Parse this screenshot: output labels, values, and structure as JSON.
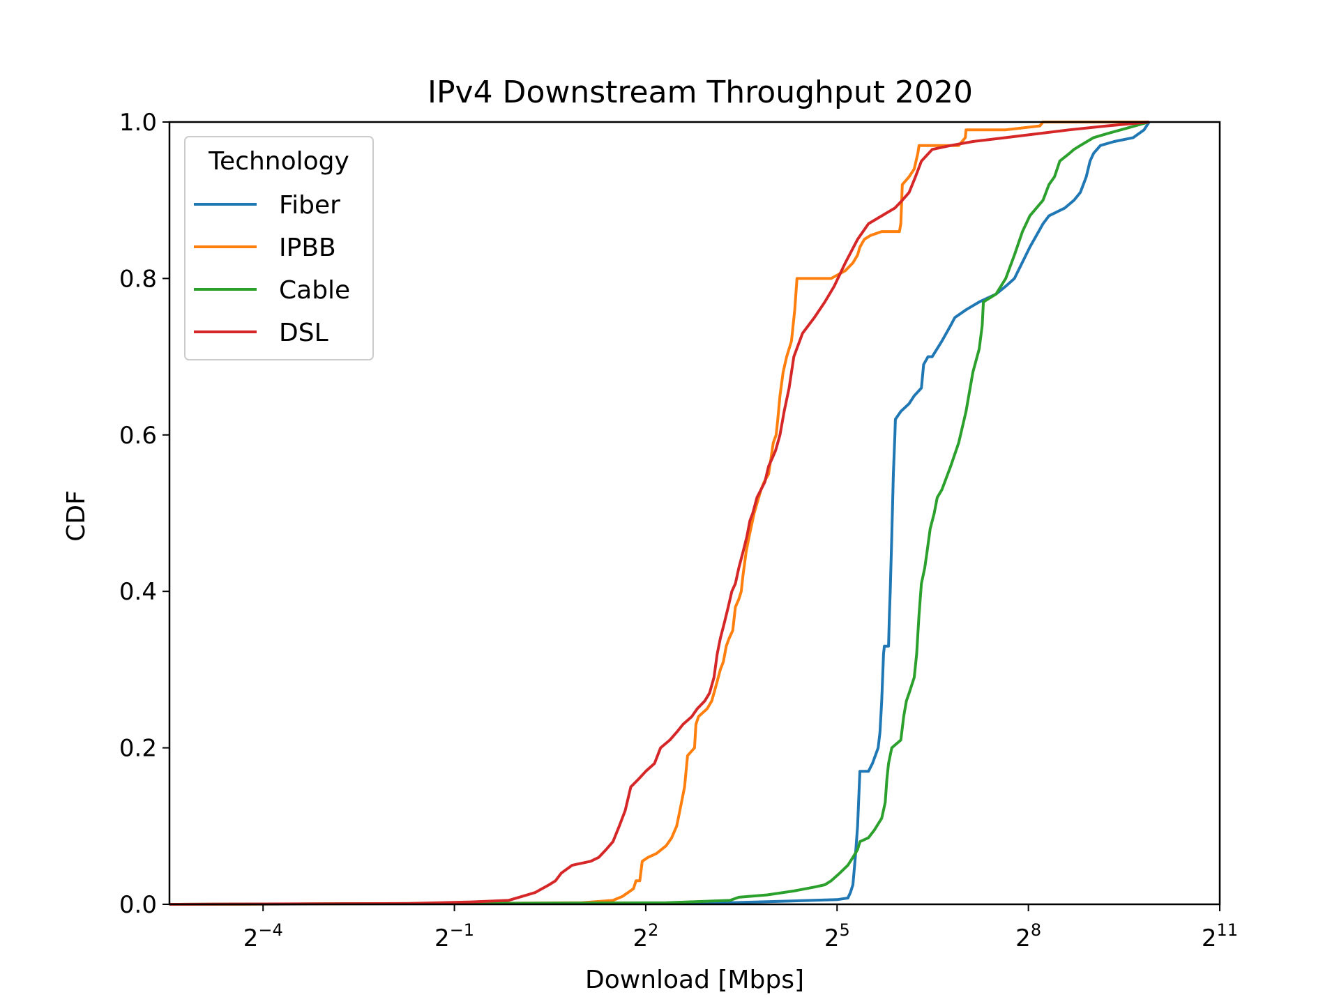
{
  "chart_data": {
    "type": "line",
    "title": "IPv4 Downstream Throughput 2020",
    "xlabel": "Download [Mbps]",
    "ylabel": "CDF",
    "x_scale": "log2",
    "xlim": [
      0.0226,
      2048
    ],
    "ylim": [
      0,
      1
    ],
    "x_ticks": [
      {
        "base": "2",
        "exp": "−4",
        "value": 0.0625
      },
      {
        "base": "2",
        "exp": "−1",
        "value": 0.5
      },
      {
        "base": "2",
        "exp": "2",
        "value": 4
      },
      {
        "base": "2",
        "exp": "5",
        "value": 32
      },
      {
        "base": "2",
        "exp": "8",
        "value": 256
      },
      {
        "base": "2",
        "exp": "11",
        "value": 2048
      }
    ],
    "y_ticks": [
      {
        "label": "0.0",
        "value": 0.0
      },
      {
        "label": "0.2",
        "value": 0.2
      },
      {
        "label": "0.4",
        "value": 0.4
      },
      {
        "label": "0.6",
        "value": 0.6
      },
      {
        "label": "0.8",
        "value": 0.8
      },
      {
        "label": "1.0",
        "value": 1.0
      }
    ],
    "grid": false,
    "legend": {
      "title": "Technology",
      "position": "top-left"
    },
    "series": [
      {
        "name": "Fiber",
        "color": "#1f77b4",
        "points": [
          [
            0.0226,
            0
          ],
          [
            1,
            0.001
          ],
          [
            10,
            0.002
          ],
          [
            32,
            0.006
          ],
          [
            36,
            0.008
          ],
          [
            37,
            0.015
          ],
          [
            38,
            0.025
          ],
          [
            39,
            0.06
          ],
          [
            40,
            0.1
          ],
          [
            41,
            0.17
          ],
          [
            45,
            0.17
          ],
          [
            47,
            0.18
          ],
          [
            50,
            0.2
          ],
          [
            51,
            0.22
          ],
          [
            52,
            0.26
          ],
          [
            53,
            0.32
          ],
          [
            53.5,
            0.33
          ],
          [
            56,
            0.33
          ],
          [
            56.5,
            0.37
          ],
          [
            57,
            0.4
          ],
          [
            58,
            0.47
          ],
          [
            59,
            0.55
          ],
          [
            60,
            0.6
          ],
          [
            60.3,
            0.62
          ],
          [
            64,
            0.63
          ],
          [
            70,
            0.64
          ],
          [
            74,
            0.65
          ],
          [
            80,
            0.66
          ],
          [
            82,
            0.69
          ],
          [
            86,
            0.7
          ],
          [
            90,
            0.7
          ],
          [
            100,
            0.72
          ],
          [
            110,
            0.74
          ],
          [
            115,
            0.75
          ],
          [
            130,
            0.76
          ],
          [
            150,
            0.77
          ],
          [
            180,
            0.78
          ],
          [
            200,
            0.79
          ],
          [
            220,
            0.8
          ],
          [
            260,
            0.84
          ],
          [
            300,
            0.87
          ],
          [
            320,
            0.88
          ],
          [
            380,
            0.89
          ],
          [
            420,
            0.9
          ],
          [
            450,
            0.91
          ],
          [
            480,
            0.93
          ],
          [
            500,
            0.95
          ],
          [
            520,
            0.96
          ],
          [
            560,
            0.97
          ],
          [
            650,
            0.975
          ],
          [
            800,
            0.98
          ],
          [
            900,
            0.99
          ],
          [
            950,
            1.0
          ]
        ]
      },
      {
        "name": "IPBB",
        "color": "#ff7f0e",
        "points": [
          [
            0.0226,
            0
          ],
          [
            0.5,
            0.001
          ],
          [
            2,
            0.002
          ],
          [
            2.8,
            0.005
          ],
          [
            3.1,
            0.01
          ],
          [
            3.3,
            0.015
          ],
          [
            3.5,
            0.02
          ],
          [
            3.6,
            0.03
          ],
          [
            3.75,
            0.03
          ],
          [
            3.85,
            0.055
          ],
          [
            4.1,
            0.06
          ],
          [
            4.5,
            0.065
          ],
          [
            5,
            0.075
          ],
          [
            5.3,
            0.085
          ],
          [
            5.6,
            0.1
          ],
          [
            5.8,
            0.12
          ],
          [
            6.1,
            0.15
          ],
          [
            6.3,
            0.19
          ],
          [
            6.8,
            0.2
          ],
          [
            6.9,
            0.23
          ],
          [
            7.1,
            0.24
          ],
          [
            7.8,
            0.25
          ],
          [
            8.2,
            0.26
          ],
          [
            8.6,
            0.28
          ],
          [
            9,
            0.3
          ],
          [
            9.3,
            0.31
          ],
          [
            9.6,
            0.33
          ],
          [
            9.9,
            0.34
          ],
          [
            10.3,
            0.35
          ],
          [
            10.6,
            0.38
          ],
          [
            11,
            0.39
          ],
          [
            11.3,
            0.4
          ],
          [
            11.5,
            0.42
          ],
          [
            11.9,
            0.45
          ],
          [
            12.3,
            0.47
          ],
          [
            13,
            0.5
          ],
          [
            14,
            0.53
          ],
          [
            14.5,
            0.54
          ],
          [
            15.2,
            0.55
          ],
          [
            15.6,
            0.57
          ],
          [
            16,
            0.59
          ],
          [
            16.5,
            0.6
          ],
          [
            16.8,
            0.62
          ],
          [
            17.2,
            0.65
          ],
          [
            17.8,
            0.68
          ],
          [
            18.5,
            0.7
          ],
          [
            19.5,
            0.72
          ],
          [
            20.2,
            0.76
          ],
          [
            20.7,
            0.8
          ],
          [
            25,
            0.8
          ],
          [
            30,
            0.8
          ],
          [
            35,
            0.81
          ],
          [
            38,
            0.82
          ],
          [
            40,
            0.83
          ],
          [
            41,
            0.84
          ],
          [
            43,
            0.85
          ],
          [
            46,
            0.855
          ],
          [
            52,
            0.86
          ],
          [
            63,
            0.86
          ],
          [
            64,
            0.87
          ],
          [
            65,
            0.92
          ],
          [
            70,
            0.93
          ],
          [
            74,
            0.94
          ],
          [
            77,
            0.96
          ],
          [
            78,
            0.97
          ],
          [
            93,
            0.97
          ],
          [
            120,
            0.97
          ],
          [
            129,
            0.98
          ],
          [
            130,
            0.99
          ],
          [
            200,
            0.99
          ],
          [
            290,
            0.995
          ],
          [
            300,
            1.0
          ],
          [
            950,
            1.0
          ]
        ]
      },
      {
        "name": "Cable",
        "color": "#2ca02c",
        "points": [
          [
            0.0226,
            0
          ],
          [
            5,
            0.002
          ],
          [
            10,
            0.005
          ],
          [
            11,
            0.009
          ],
          [
            15,
            0.012
          ],
          [
            20,
            0.017
          ],
          [
            25,
            0.022
          ],
          [
            28,
            0.025
          ],
          [
            30,
            0.03
          ],
          [
            33,
            0.04
          ],
          [
            36,
            0.05
          ],
          [
            38,
            0.06
          ],
          [
            40,
            0.07
          ],
          [
            41,
            0.08
          ],
          [
            45,
            0.085
          ],
          [
            48,
            0.095
          ],
          [
            52,
            0.11
          ],
          [
            54,
            0.13
          ],
          [
            55,
            0.16
          ],
          [
            56,
            0.18
          ],
          [
            58,
            0.2
          ],
          [
            64,
            0.21
          ],
          [
            66,
            0.24
          ],
          [
            68,
            0.26
          ],
          [
            70,
            0.27
          ],
          [
            74,
            0.29
          ],
          [
            76,
            0.32
          ],
          [
            78,
            0.37
          ],
          [
            80,
            0.41
          ],
          [
            83,
            0.43
          ],
          [
            85,
            0.45
          ],
          [
            88,
            0.48
          ],
          [
            92,
            0.5
          ],
          [
            95,
            0.52
          ],
          [
            100,
            0.53
          ],
          [
            110,
            0.56
          ],
          [
            120,
            0.59
          ],
          [
            130,
            0.63
          ],
          [
            140,
            0.68
          ],
          [
            150,
            0.71
          ],
          [
            155,
            0.74
          ],
          [
            157,
            0.77
          ],
          [
            180,
            0.78
          ],
          [
            200,
            0.8
          ],
          [
            220,
            0.83
          ],
          [
            240,
            0.86
          ],
          [
            260,
            0.88
          ],
          [
            300,
            0.9
          ],
          [
            320,
            0.92
          ],
          [
            340,
            0.93
          ],
          [
            360,
            0.95
          ],
          [
            400,
            0.96
          ],
          [
            420,
            0.965
          ],
          [
            450,
            0.97
          ],
          [
            520,
            0.98
          ],
          [
            600,
            0.985
          ],
          [
            950,
            1.0
          ]
        ]
      },
      {
        "name": "DSL",
        "color": "#d62728",
        "points": [
          [
            0.0226,
            0
          ],
          [
            0.3,
            0.001
          ],
          [
            0.6,
            0.003
          ],
          [
            0.9,
            0.005
          ],
          [
            1.2,
            0.015
          ],
          [
            1.4,
            0.025
          ],
          [
            1.5,
            0.03
          ],
          [
            1.6,
            0.04
          ],
          [
            1.8,
            0.05
          ],
          [
            2.2,
            0.055
          ],
          [
            2.4,
            0.06
          ],
          [
            2.6,
            0.07
          ],
          [
            2.8,
            0.08
          ],
          [
            3,
            0.1
          ],
          [
            3.2,
            0.12
          ],
          [
            3.4,
            0.15
          ],
          [
            3.7,
            0.16
          ],
          [
            4,
            0.17
          ],
          [
            4.4,
            0.18
          ],
          [
            4.7,
            0.2
          ],
          [
            5.2,
            0.21
          ],
          [
            5.6,
            0.22
          ],
          [
            6,
            0.23
          ],
          [
            6.6,
            0.24
          ],
          [
            7,
            0.25
          ],
          [
            7.6,
            0.26
          ],
          [
            8,
            0.27
          ],
          [
            8.4,
            0.29
          ],
          [
            8.7,
            0.32
          ],
          [
            9,
            0.34
          ],
          [
            9.4,
            0.36
          ],
          [
            9.8,
            0.38
          ],
          [
            10.2,
            0.4
          ],
          [
            10.6,
            0.41
          ],
          [
            11,
            0.43
          ],
          [
            11.5,
            0.45
          ],
          [
            12,
            0.47
          ],
          [
            12.4,
            0.49
          ],
          [
            12.8,
            0.5
          ],
          [
            13.4,
            0.52
          ],
          [
            14,
            0.53
          ],
          [
            14.6,
            0.54
          ],
          [
            15.2,
            0.56
          ],
          [
            15.8,
            0.57
          ],
          [
            16.4,
            0.58
          ],
          [
            17.2,
            0.6
          ],
          [
            18,
            0.63
          ],
          [
            19,
            0.66
          ],
          [
            20,
            0.7
          ],
          [
            22,
            0.73
          ],
          [
            25,
            0.75
          ],
          [
            28,
            0.77
          ],
          [
            31,
            0.79
          ],
          [
            35,
            0.82
          ],
          [
            40,
            0.85
          ],
          [
            45,
            0.87
          ],
          [
            52,
            0.88
          ],
          [
            60,
            0.89
          ],
          [
            65,
            0.9
          ],
          [
            70,
            0.91
          ],
          [
            75,
            0.93
          ],
          [
            80,
            0.95
          ],
          [
            90,
            0.965
          ],
          [
            110,
            0.97
          ],
          [
            140,
            0.975
          ],
          [
            200,
            0.98
          ],
          [
            400,
            0.99
          ],
          [
            600,
            0.995
          ],
          [
            950,
            1.0
          ]
        ]
      }
    ]
  }
}
